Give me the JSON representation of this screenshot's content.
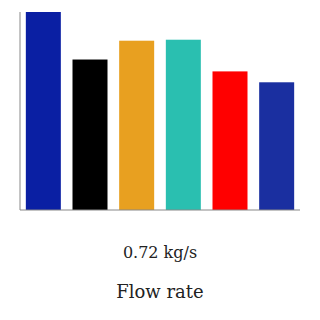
{
  "chart_data": {
    "type": "bar",
    "categories": [
      null,
      null,
      null,
      null,
      null,
      null
    ],
    "values": [
      1.0,
      0.76,
      0.855,
      0.86,
      0.7,
      0.645
    ],
    "colors": [
      "#0a1fa3",
      "#000000",
      "#e8a020",
      "#2abfb0",
      "#ff0000",
      "#1a2fa0"
    ],
    "xlabel": "0.72 kg/s",
    "annotations": [
      "Flow rate"
    ],
    "ylim": [
      0,
      1.0
    ],
    "grid": false,
    "tick_labels": false
  }
}
